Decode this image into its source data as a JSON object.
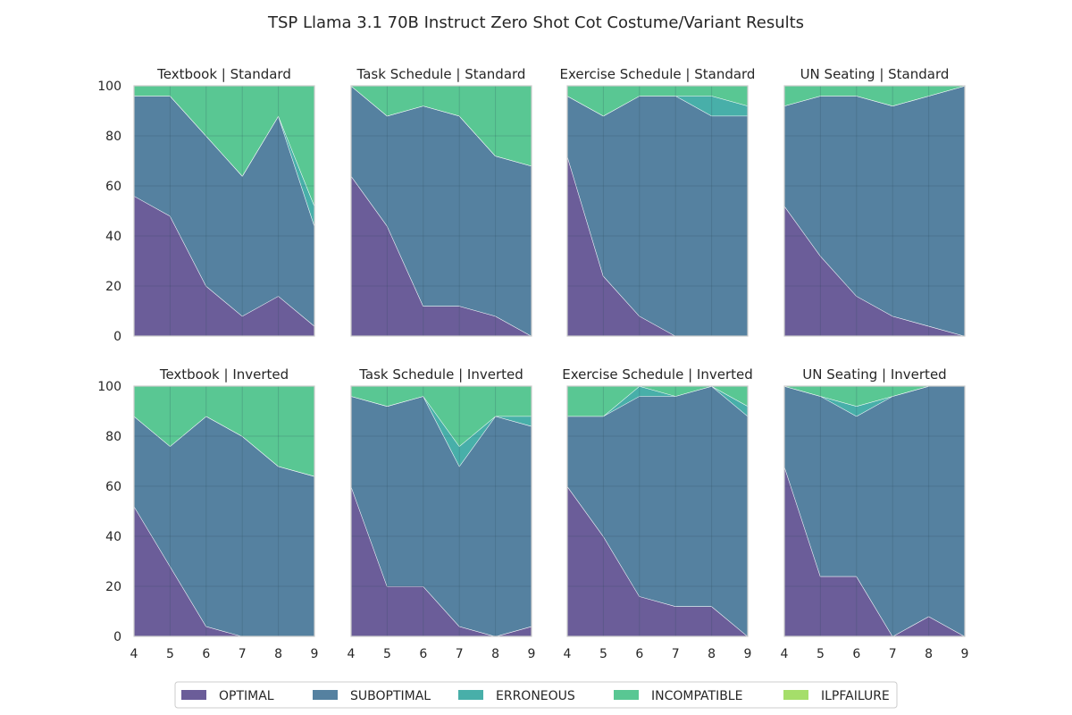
{
  "figure_title": "TSP Llama 3.1 70B Instruct Zero Shot Cot Costume/Variant Results",
  "series_names": [
    "OPTIMAL",
    "SUBOPTIMAL",
    "ERRONEOUS",
    "INCOMPATIBLE",
    "ILPFAILURE"
  ],
  "colors": {
    "OPTIMAL": "#463480",
    "SUBOPTIMAL": "#2a6188",
    "ERRONEOUS": "#1a9b94",
    "INCOMPATIBLE": "#2fb978",
    "ILPFAILURE": "#8ed645",
    "grid": "#2a4858",
    "frame": "#cccccc",
    "line": "#ffffff"
  },
  "chart_data": [
    {
      "type": "area",
      "stacked": true,
      "title": "Textbook | Standard",
      "x": [
        4,
        5,
        6,
        7,
        8,
        9
      ],
      "ylim": [
        0,
        100
      ],
      "xlim": [
        4,
        9
      ],
      "yticks": [
        0,
        20,
        40,
        60,
        80,
        100
      ],
      "xticks": [
        4,
        5,
        6,
        7,
        8,
        9
      ],
      "grid": true,
      "series": [
        {
          "name": "OPTIMAL",
          "values": [
            56,
            48,
            20,
            8,
            16,
            4
          ]
        },
        {
          "name": "SUBOPTIMAL",
          "values": [
            40,
            48,
            60,
            56,
            72,
            40
          ]
        },
        {
          "name": "ERRONEOUS",
          "values": [
            0,
            0,
            0,
            0,
            0,
            8
          ]
        },
        {
          "name": "INCOMPATIBLE",
          "values": [
            4,
            4,
            20,
            36,
            12,
            48
          ]
        },
        {
          "name": "ILPFAILURE",
          "values": [
            0,
            0,
            0,
            0,
            0,
            0
          ]
        }
      ]
    },
    {
      "type": "area",
      "stacked": true,
      "title": "Task Schedule | Standard",
      "x": [
        4,
        5,
        6,
        7,
        8,
        9
      ],
      "ylim": [
        0,
        100
      ],
      "xlim": [
        4,
        9
      ],
      "yticks": [
        0,
        20,
        40,
        60,
        80,
        100
      ],
      "xticks": [
        4,
        5,
        6,
        7,
        8,
        9
      ],
      "grid": true,
      "series": [
        {
          "name": "OPTIMAL",
          "values": [
            64,
            44,
            12,
            12,
            8,
            0
          ]
        },
        {
          "name": "SUBOPTIMAL",
          "values": [
            36,
            44,
            80,
            76,
            64,
            68
          ]
        },
        {
          "name": "ERRONEOUS",
          "values": [
            0,
            0,
            0,
            0,
            0,
            0
          ]
        },
        {
          "name": "INCOMPATIBLE",
          "values": [
            0,
            12,
            8,
            12,
            28,
            32
          ]
        },
        {
          "name": "ILPFAILURE",
          "values": [
            0,
            0,
            0,
            0,
            0,
            0
          ]
        }
      ]
    },
    {
      "type": "area",
      "stacked": true,
      "title": "Exercise Schedule | Standard",
      "x": [
        4,
        5,
        6,
        7,
        8,
        9
      ],
      "ylim": [
        0,
        100
      ],
      "xlim": [
        4,
        9
      ],
      "yticks": [
        0,
        20,
        40,
        60,
        80,
        100
      ],
      "xticks": [
        4,
        5,
        6,
        7,
        8,
        9
      ],
      "grid": true,
      "series": [
        {
          "name": "OPTIMAL",
          "values": [
            72,
            24,
            8,
            0,
            0,
            0
          ]
        },
        {
          "name": "SUBOPTIMAL",
          "values": [
            24,
            64,
            88,
            96,
            88,
            88
          ]
        },
        {
          "name": "ERRONEOUS",
          "values": [
            0,
            0,
            0,
            0,
            8,
            4
          ]
        },
        {
          "name": "INCOMPATIBLE",
          "values": [
            4,
            12,
            4,
            4,
            4,
            8
          ]
        },
        {
          "name": "ILPFAILURE",
          "values": [
            0,
            0,
            0,
            0,
            0,
            0
          ]
        }
      ]
    },
    {
      "type": "area",
      "stacked": true,
      "title": "UN Seating | Standard",
      "x": [
        4,
        5,
        6,
        7,
        8,
        9
      ],
      "ylim": [
        0,
        100
      ],
      "xlim": [
        4,
        9
      ],
      "yticks": [
        0,
        20,
        40,
        60,
        80,
        100
      ],
      "xticks": [
        4,
        5,
        6,
        7,
        8,
        9
      ],
      "grid": true,
      "series": [
        {
          "name": "OPTIMAL",
          "values": [
            52,
            32,
            16,
            8,
            4,
            0
          ]
        },
        {
          "name": "SUBOPTIMAL",
          "values": [
            40,
            64,
            80,
            84,
            92,
            100
          ]
        },
        {
          "name": "ERRONEOUS",
          "values": [
            0,
            0,
            0,
            0,
            0,
            0
          ]
        },
        {
          "name": "INCOMPATIBLE",
          "values": [
            8,
            4,
            4,
            8,
            4,
            0
          ]
        },
        {
          "name": "ILPFAILURE",
          "values": [
            0,
            0,
            0,
            0,
            0,
            0
          ]
        }
      ]
    },
    {
      "type": "area",
      "stacked": true,
      "title": "Textbook | Inverted",
      "x": [
        4,
        5,
        6,
        7,
        8,
        9
      ],
      "ylim": [
        0,
        100
      ],
      "xlim": [
        4,
        9
      ],
      "yticks": [
        0,
        20,
        40,
        60,
        80,
        100
      ],
      "xticks": [
        4,
        5,
        6,
        7,
        8,
        9
      ],
      "grid": true,
      "series": [
        {
          "name": "OPTIMAL",
          "values": [
            52,
            28,
            4,
            0,
            0,
            0
          ]
        },
        {
          "name": "SUBOPTIMAL",
          "values": [
            36,
            48,
            84,
            80,
            68,
            64
          ]
        },
        {
          "name": "ERRONEOUS",
          "values": [
            0,
            0,
            0,
            0,
            0,
            0
          ]
        },
        {
          "name": "INCOMPATIBLE",
          "values": [
            12,
            24,
            12,
            20,
            32,
            36
          ]
        },
        {
          "name": "ILPFAILURE",
          "values": [
            0,
            0,
            0,
            0,
            0,
            0
          ]
        }
      ]
    },
    {
      "type": "area",
      "stacked": true,
      "title": "Task Schedule | Inverted",
      "x": [
        4,
        5,
        6,
        7,
        8,
        9
      ],
      "ylim": [
        0,
        100
      ],
      "xlim": [
        4,
        9
      ],
      "yticks": [
        0,
        20,
        40,
        60,
        80,
        100
      ],
      "xticks": [
        4,
        5,
        6,
        7,
        8,
        9
      ],
      "grid": true,
      "series": [
        {
          "name": "OPTIMAL",
          "values": [
            60,
            20,
            20,
            4,
            0,
            4
          ]
        },
        {
          "name": "SUBOPTIMAL",
          "values": [
            36,
            72,
            76,
            64,
            88,
            80
          ]
        },
        {
          "name": "ERRONEOUS",
          "values": [
            0,
            0,
            0,
            8,
            0,
            4
          ]
        },
        {
          "name": "INCOMPATIBLE",
          "values": [
            4,
            8,
            4,
            24,
            12,
            12
          ]
        },
        {
          "name": "ILPFAILURE",
          "values": [
            0,
            0,
            0,
            0,
            0,
            0
          ]
        }
      ]
    },
    {
      "type": "area",
      "stacked": true,
      "title": "Exercise Schedule | Inverted",
      "x": [
        4,
        5,
        6,
        7,
        8,
        9
      ],
      "ylim": [
        0,
        100
      ],
      "xlim": [
        4,
        9
      ],
      "yticks": [
        0,
        20,
        40,
        60,
        80,
        100
      ],
      "xticks": [
        4,
        5,
        6,
        7,
        8,
        9
      ],
      "grid": true,
      "series": [
        {
          "name": "OPTIMAL",
          "values": [
            60,
            40,
            16,
            12,
            12,
            0
          ]
        },
        {
          "name": "SUBOPTIMAL",
          "values": [
            28,
            48,
            80,
            84,
            88,
            88
          ]
        },
        {
          "name": "ERRONEOUS",
          "values": [
            0,
            0,
            4,
            0,
            0,
            4
          ]
        },
        {
          "name": "INCOMPATIBLE",
          "values": [
            12,
            12,
            0,
            4,
            0,
            8
          ]
        },
        {
          "name": "ILPFAILURE",
          "values": [
            0,
            0,
            0,
            0,
            0,
            0
          ]
        }
      ]
    },
    {
      "type": "area",
      "stacked": true,
      "title": "UN Seating | Inverted",
      "x": [
        4,
        5,
        6,
        7,
        8,
        9
      ],
      "ylim": [
        0,
        100
      ],
      "xlim": [
        4,
        9
      ],
      "yticks": [
        0,
        20,
        40,
        60,
        80,
        100
      ],
      "xticks": [
        4,
        5,
        6,
        7,
        8,
        9
      ],
      "grid": true,
      "series": [
        {
          "name": "OPTIMAL",
          "values": [
            68,
            24,
            24,
            0,
            8,
            0
          ]
        },
        {
          "name": "SUBOPTIMAL",
          "values": [
            32,
            72,
            64,
            96,
            92,
            100
          ]
        },
        {
          "name": "ERRONEOUS",
          "values": [
            0,
            0,
            4,
            0,
            0,
            0
          ]
        },
        {
          "name": "INCOMPATIBLE",
          "values": [
            0,
            4,
            8,
            4,
            0,
            0
          ]
        },
        {
          "name": "ILPFAILURE",
          "values": [
            0,
            0,
            0,
            0,
            0,
            0
          ]
        }
      ]
    }
  ],
  "legend": {
    "placement": "bottom-center",
    "items": [
      {
        "name": "OPTIMAL",
        "label": "OPTIMAL"
      },
      {
        "name": "SUBOPTIMAL",
        "label": "SUBOPTIMAL"
      },
      {
        "name": "ERRONEOUS",
        "label": "ERRONEOUS"
      },
      {
        "name": "INCOMPATIBLE",
        "label": "INCOMPATIBLE"
      },
      {
        "name": "ILPFAILURE",
        "label": "ILPFAILURE"
      }
    ]
  }
}
